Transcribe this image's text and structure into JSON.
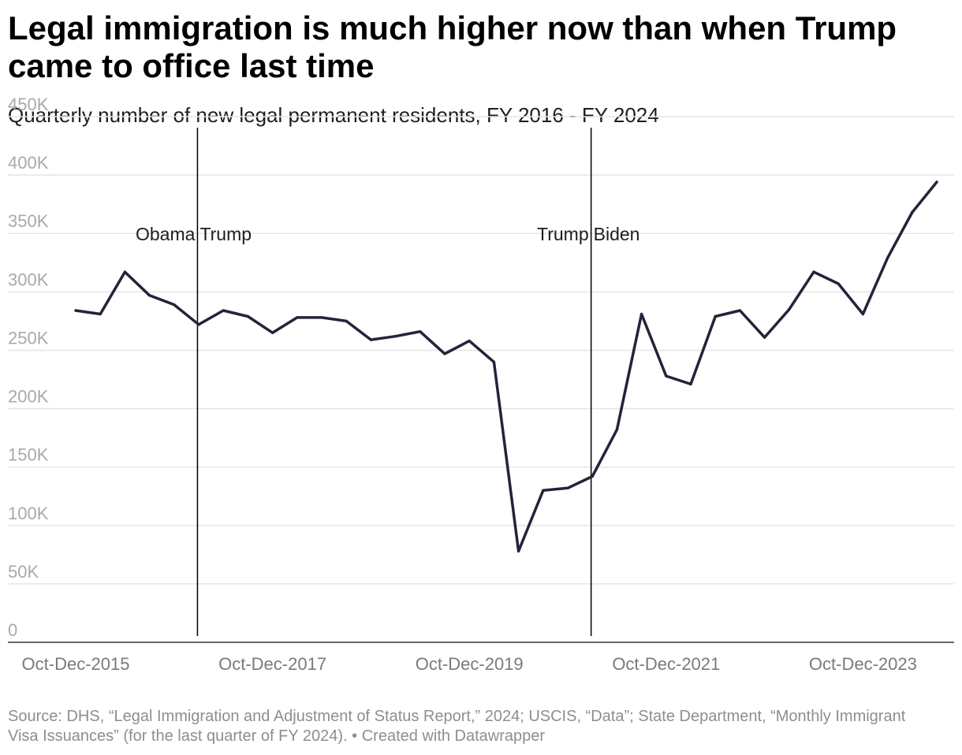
{
  "title": "Legal immigration is much higher now than when Trump came to office last time",
  "subtitle": "Quarterly number of new legal permanent residents, FY 2016 - FY 2024",
  "footer": {
    "source": "Source: DHS, “Legal Immigration and Adjustment of Status Report,” 2024; USCIS, “Data”; State Department, “Monthly Immigrant Visa Issuances” (for the last quarter of FY 2024).",
    "credit": "Created with Datawrapper"
  },
  "colors": {
    "line": "#25233a",
    "grid": "#e5e5e5",
    "axis": "#333333",
    "annotation_line": "#000000"
  },
  "chart_data": {
    "type": "line",
    "title": "Legal immigration is much higher now than when Trump came to office last time",
    "subtitle": "Quarterly number of new legal permanent residents, FY 2016 - FY 2024",
    "xlabel": "",
    "ylabel": "",
    "ylim": [
      0,
      450000
    ],
    "yticks": [
      0,
      50000,
      100000,
      150000,
      200000,
      250000,
      300000,
      350000,
      400000,
      450000
    ],
    "ytick_labels": [
      "0",
      "50K",
      "100K",
      "150K",
      "200K",
      "250K",
      "300K",
      "350K",
      "400K",
      "450K"
    ],
    "xtick_labels": [
      "Oct-Dec-2015",
      "Oct-Dec-2017",
      "Oct-Dec-2019",
      "Oct-Dec-2021",
      "Oct-Dec-2023"
    ],
    "xtick_indices": [
      0,
      8,
      16,
      24,
      32
    ],
    "grid": true,
    "categories": [
      "Oct-Dec-2015",
      "Jan-Mar-2016",
      "Apr-Jun-2016",
      "Jul-Sep-2016",
      "Oct-Dec-2016",
      "Jan-Mar-2017",
      "Apr-Jun-2017",
      "Jul-Sep-2017",
      "Oct-Dec-2017",
      "Jan-Mar-2018",
      "Apr-Jun-2018",
      "Jul-Sep-2018",
      "Oct-Dec-2018",
      "Jan-Mar-2019",
      "Apr-Jun-2019",
      "Jul-Sep-2019",
      "Oct-Dec-2019",
      "Jan-Mar-2020",
      "Apr-Jun-2020",
      "Jul-Sep-2020",
      "Oct-Dec-2020",
      "Jan-Mar-2021",
      "Apr-Jun-2021",
      "Jul-Sep-2021",
      "Oct-Dec-2021",
      "Jan-Mar-2022",
      "Apr-Jun-2022",
      "Jul-Sep-2022",
      "Oct-Dec-2022",
      "Jan-Mar-2023",
      "Apr-Jun-2023",
      "Jul-Sep-2023",
      "Oct-Dec-2023",
      "Jan-Mar-2024",
      "Apr-Jun-2024",
      "Jul-Sep-2024"
    ],
    "series": [
      {
        "values": [
          284000,
          281000,
          317000,
          297000,
          289000,
          272000,
          284000,
          279000,
          265000,
          278000,
          278000,
          275000,
          259000,
          262000,
          266000,
          247000,
          258000,
          240000,
          78000,
          130000,
          132000,
          142000,
          182000,
          281000,
          228000,
          221000,
          279000,
          284000,
          261000,
          285000,
          317000,
          307000,
          281000,
          329000,
          368000,
          394000
        ]
      }
    ],
    "annotations": [
      {
        "at_index": 4.95,
        "label_left": "Obama",
        "label_right": "Trump"
      },
      {
        "at_index": 20.95,
        "label_left": "Trump",
        "label_right": "Biden"
      }
    ]
  }
}
